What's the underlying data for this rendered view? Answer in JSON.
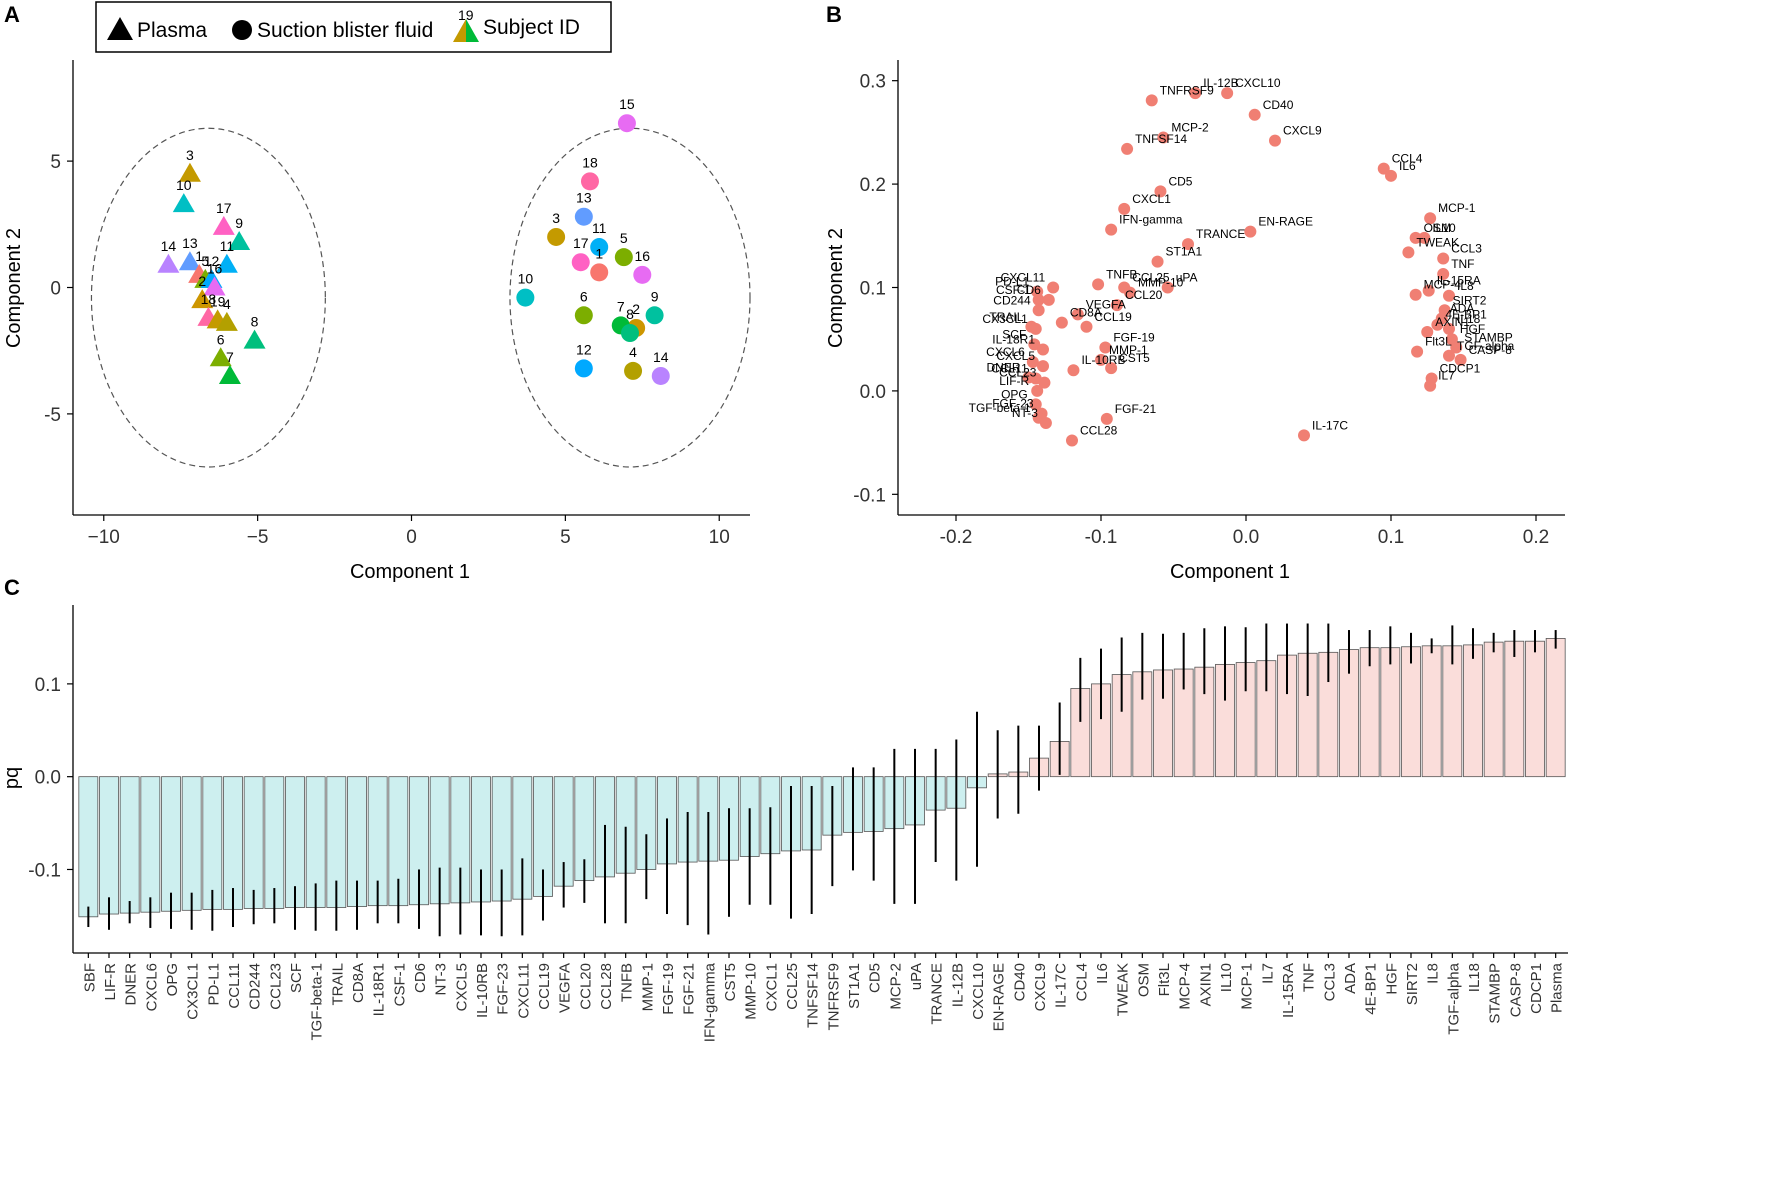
{
  "panels": {
    "A": {
      "letter": "A",
      "xlabel": "Component 1",
      "ylabel": "Component 2"
    },
    "B": {
      "letter": "B",
      "xlabel": "Component 1",
      "ylabel": "Component 2"
    },
    "C": {
      "letter": "C",
      "xlabel": "",
      "ylabel": "pq"
    }
  },
  "legend": {
    "plasma": "Plasma",
    "blister": "Suction blister fluid",
    "subject_id": "Subject ID",
    "subject_example": "19"
  },
  "chart_data": [
    {
      "type": "scatter",
      "panel": "A",
      "xlabel": "Component 1",
      "ylabel": "Component 2",
      "xlim": [
        -11,
        11
      ],
      "ylim": [
        -9,
        9
      ],
      "xticks": [
        -10,
        -5,
        0,
        5,
        10
      ],
      "xtick_labels": [
        "−10",
        "−5",
        "0",
        "5",
        "10"
      ],
      "yticks": [
        -5,
        0,
        5
      ],
      "ytick_labels": [
        "-5",
        "0",
        "5"
      ],
      "subject_colors": {
        "1": "#F8766D",
        "2": "#CD9600",
        "3": "#C49A00",
        "4": "#B3A000",
        "5": "#7CAE00",
        "6": "#7CAE00",
        "7": "#00BA38",
        "8": "#00BF7D",
        "9": "#00C19F",
        "10": "#00BFC4",
        "11": "#00B0F6",
        "12": "#00A9FF",
        "13": "#619CFF",
        "14": "#B983FF",
        "15": "#E76BF3",
        "16": "#E76BF3",
        "17": "#FF61C3",
        "18": "#FF67A4",
        "19": "#C49A00"
      },
      "series": [
        {
          "name": "Plasma",
          "shape": "triangle",
          "points": [
            {
              "id": "3",
              "x": -7.2,
              "y": 4.5
            },
            {
              "id": "10",
              "x": -7.4,
              "y": 3.3
            },
            {
              "id": "17",
              "x": -6.1,
              "y": 2.4
            },
            {
              "id": "9",
              "x": -5.6,
              "y": 1.8
            },
            {
              "id": "11",
              "x": -6.0,
              "y": 0.9
            },
            {
              "id": "14",
              "x": -7.9,
              "y": 0.9
            },
            {
              "id": "13",
              "x": -7.2,
              "y": 1.0
            },
            {
              "id": "1",
              "x": -6.9,
              "y": 0.5
            },
            {
              "id": "5",
              "x": -6.7,
              "y": 0.3
            },
            {
              "id": "12",
              "x": -6.5,
              "y": 0.3
            },
            {
              "id": "16",
              "x": -6.4,
              "y": 0.0
            },
            {
              "id": "2",
              "x": -6.8,
              "y": -0.5
            },
            {
              "id": "18",
              "x": -6.6,
              "y": -1.2
            },
            {
              "id": "19",
              "x": -6.3,
              "y": -1.3
            },
            {
              "id": "4",
              "x": -6.0,
              "y": -1.4
            },
            {
              "id": "8",
              "x": -5.1,
              "y": -2.1
            },
            {
              "id": "6",
              "x": -6.2,
              "y": -2.8
            },
            {
              "id": "7",
              "x": -5.9,
              "y": -3.5
            }
          ]
        },
        {
          "name": "Suction blister fluid",
          "shape": "circle",
          "points": [
            {
              "id": "15",
              "x": 7.0,
              "y": 6.5
            },
            {
              "id": "18",
              "x": 5.8,
              "y": 4.2
            },
            {
              "id": "13",
              "x": 5.6,
              "y": 2.8
            },
            {
              "id": "3",
              "x": 4.7,
              "y": 2.0
            },
            {
              "id": "11",
              "x": 6.1,
              "y": 1.6
            },
            {
              "id": "5",
              "x": 6.9,
              "y": 1.2
            },
            {
              "id": "17",
              "x": 5.5,
              "y": 1.0
            },
            {
              "id": "1",
              "x": 6.1,
              "y": 0.6
            },
            {
              "id": "16",
              "x": 7.5,
              "y": 0.5
            },
            {
              "id": "10",
              "x": 3.7,
              "y": -0.4
            },
            {
              "id": "6",
              "x": 5.6,
              "y": -1.1
            },
            {
              "id": "9",
              "x": 7.9,
              "y": -1.1
            },
            {
              "id": "2",
              "x": 7.3,
              "y": -1.6
            },
            {
              "id": "7",
              "x": 6.8,
              "y": -1.5
            },
            {
              "id": "8",
              "x": 7.1,
              "y": -1.8
            },
            {
              "id": "12",
              "x": 5.6,
              "y": -3.2
            },
            {
              "id": "4",
              "x": 7.2,
              "y": -3.3
            },
            {
              "id": "14",
              "x": 8.1,
              "y": -3.5
            }
          ]
        }
      ],
      "ellipses": [
        {
          "cx": -6.6,
          "cy": -0.4,
          "rx": 3.8,
          "ry": 6.7
        },
        {
          "cx": 7.1,
          "cy": -0.4,
          "rx": 3.9,
          "ry": 6.7
        }
      ]
    },
    {
      "type": "scatter",
      "panel": "B",
      "xlabel": "Component 1",
      "ylabel": "Component 2",
      "xlim": [
        -0.24,
        0.22
      ],
      "ylim": [
        -0.12,
        0.32
      ],
      "xticks": [
        -0.2,
        -0.1,
        0.0,
        0.1,
        0.2
      ],
      "xtick_labels": [
        "-0.2",
        "-0.1",
        "0.0",
        "0.1",
        "0.2"
      ],
      "yticks": [
        -0.1,
        0.0,
        0.1,
        0.2,
        0.3
      ],
      "ytick_labels": [
        "-0.1",
        "0.0",
        "0.1",
        "0.2",
        "0.3"
      ],
      "point_color": "#F07F73",
      "points": [
        {
          "label": "IL-12B",
          "x": -0.035,
          "y": 0.288
        },
        {
          "label": "CXCL10",
          "x": -0.013,
          "y": 0.288
        },
        {
          "label": "TNFRSF9",
          "x": -0.065,
          "y": 0.281
        },
        {
          "label": "CD40",
          "x": 0.006,
          "y": 0.267
        },
        {
          "label": "MCP-2",
          "x": -0.057,
          "y": 0.245
        },
        {
          "label": "CXCL9",
          "x": 0.02,
          "y": 0.242
        },
        {
          "label": "TNFSF14",
          "x": -0.082,
          "y": 0.234
        },
        {
          "label": "CCL4",
          "x": 0.095,
          "y": 0.215
        },
        {
          "label": "IL6",
          "x": 0.1,
          "y": 0.208
        },
        {
          "label": "CD5",
          "x": -0.059,
          "y": 0.193
        },
        {
          "label": "CXCL1",
          "x": -0.084,
          "y": 0.176
        },
        {
          "label": "MCP-1",
          "x": 0.127,
          "y": 0.167
        },
        {
          "label": "EN-RAGE",
          "x": 0.003,
          "y": 0.154
        },
        {
          "label": "IFN-gamma",
          "x": -0.093,
          "y": 0.156
        },
        {
          "label": "OSM",
          "x": 0.117,
          "y": 0.148
        },
        {
          "label": "IL10",
          "x": 0.123,
          "y": 0.148
        },
        {
          "label": "TRANCE",
          "x": -0.04,
          "y": 0.142
        },
        {
          "label": "TWEAK",
          "x": 0.112,
          "y": 0.134
        },
        {
          "label": "CCL3",
          "x": 0.136,
          "y": 0.128
        },
        {
          "label": "ST1A1",
          "x": -0.061,
          "y": 0.125
        },
        {
          "label": "TNF",
          "x": 0.136,
          "y": 0.113
        },
        {
          "label": "PD-L1",
          "x": -0.144,
          "y": 0.096
        },
        {
          "label": "CXCL11",
          "x": -0.133,
          "y": 0.1
        },
        {
          "label": "CCL25",
          "x": -0.084,
          "y": 0.1
        },
        {
          "label": "uPA",
          "x": -0.054,
          "y": 0.1
        },
        {
          "label": "TNFB",
          "x": -0.102,
          "y": 0.103
        },
        {
          "label": "MMP-10",
          "x": -0.08,
          "y": 0.095
        },
        {
          "label": "CSF-1",
          "x": -0.143,
          "y": 0.088
        },
        {
          "label": "CD6",
          "x": -0.136,
          "y": 0.088
        },
        {
          "label": "MCP-4",
          "x": 0.117,
          "y": 0.093
        },
        {
          "label": "IL-15RA",
          "x": 0.126,
          "y": 0.097
        },
        {
          "label": "IL8",
          "x": 0.14,
          "y": 0.092
        },
        {
          "label": "CD244",
          "x": -0.143,
          "y": 0.078
        },
        {
          "label": "VEGFA",
          "x": -0.116,
          "y": 0.074
        },
        {
          "label": "CCL20",
          "x": -0.089,
          "y": 0.083
        },
        {
          "label": "SIRT2",
          "x": 0.137,
          "y": 0.078
        },
        {
          "label": "CD8A",
          "x": -0.127,
          "y": 0.066
        },
        {
          "label": "CCL19",
          "x": -0.11,
          "y": 0.062
        },
        {
          "label": "TRAIL",
          "x": -0.148,
          "y": 0.062
        },
        {
          "label": "CX3CL1",
          "x": -0.145,
          "y": 0.06
        },
        {
          "label": "4E-BP1",
          "x": 0.132,
          "y": 0.064
        },
        {
          "label": "IL18",
          "x": 0.14,
          "y": 0.06
        },
        {
          "label": "ADA",
          "x": 0.135,
          "y": 0.07
        },
        {
          "label": "HGF",
          "x": 0.142,
          "y": 0.05
        },
        {
          "label": "AXIN1",
          "x": 0.125,
          "y": 0.057
        },
        {
          "label": "FGF-19",
          "x": -0.097,
          "y": 0.042
        },
        {
          "label": "SCF",
          "x": -0.146,
          "y": 0.045
        },
        {
          "label": "IL-18R1",
          "x": -0.14,
          "y": 0.04
        },
        {
          "label": "MMP-1",
          "x": -0.1,
          "y": 0.03
        },
        {
          "label": "STAMBP",
          "x": 0.145,
          "y": 0.042
        },
        {
          "label": "Flt3L",
          "x": 0.118,
          "y": 0.038
        },
        {
          "label": "TGF-alpha",
          "x": 0.14,
          "y": 0.034
        },
        {
          "label": "CASP-8",
          "x": 0.148,
          "y": 0.03
        },
        {
          "label": "CXCL6",
          "x": -0.147,
          "y": 0.028
        },
        {
          "label": "CXCL5",
          "x": -0.14,
          "y": 0.024
        },
        {
          "label": "CST5",
          "x": -0.093,
          "y": 0.022
        },
        {
          "label": "DNER",
          "x": -0.15,
          "y": 0.013
        },
        {
          "label": "CCL11",
          "x": -0.145,
          "y": 0.012
        },
        {
          "label": "IL-10RB",
          "x": -0.119,
          "y": 0.02
        },
        {
          "label": "CDCP1",
          "x": 0.128,
          "y": 0.012
        },
        {
          "label": "IL7",
          "x": 0.127,
          "y": 0.005
        },
        {
          "label": "LIF-R",
          "x": -0.144,
          "y": 0.0
        },
        {
          "label": "CCL23",
          "x": -0.139,
          "y": 0.008
        },
        {
          "label": "OPG",
          "x": -0.145,
          "y": -0.013
        },
        {
          "label": "FGF-23",
          "x": -0.141,
          "y": -0.022
        },
        {
          "label": "TGF-beta-1",
          "x": -0.143,
          "y": -0.026
        },
        {
          "label": "NT-3",
          "x": -0.138,
          "y": -0.031
        },
        {
          "label": "FGF-21",
          "x": -0.096,
          "y": -0.027
        },
        {
          "label": "CCL28",
          "x": -0.12,
          "y": -0.048
        },
        {
          "label": "IL-17C",
          "x": 0.04,
          "y": -0.043
        }
      ]
    },
    {
      "type": "bar",
      "panel": "C",
      "ylabel": "pq",
      "ylim": [
        -0.19,
        0.185
      ],
      "yticks": [
        -0.1,
        0.0,
        0.1
      ],
      "ytick_labels": [
        "-0.1",
        "0.0",
        "0.1"
      ],
      "negative_color": "#CDEFEF",
      "positive_color": "#FADDDA",
      "categories": [
        "SBF",
        "LIF-R",
        "DNER",
        "CXCL6",
        "OPG",
        "CX3CL1",
        "PD-L1",
        "CCL11",
        "CD244",
        "CCL23",
        "SCF",
        "TGF-beta-1",
        "TRAIL",
        "CD8A",
        "IL-18R1",
        "CSF-1",
        "CD6",
        "NT-3",
        "CXCL5",
        "IL-10RB",
        "FGF-23",
        "CXCL11",
        "CCL19",
        "VEGFA",
        "CCL20",
        "CCL28",
        "TNFB",
        "MMP-1",
        "FGF-19",
        "FGF-21",
        "IFN-gamma",
        "CST5",
        "MMP-10",
        "CXCL1",
        "CCL25",
        "TNFSF14",
        "TNFRSF9",
        "ST1A1",
        "CD5",
        "MCP-2",
        "uPA",
        "TRANCE",
        "IL-12B",
        "CXCL10",
        "EN-RAGE",
        "CD40",
        "CXCL9",
        "IL-17C",
        "CCL4",
        "IL6",
        "TWEAK",
        "OSM",
        "Flt3L",
        "MCP-4",
        "AXIN1",
        "IL10",
        "MCP-1",
        "IL7",
        "IL-15RA",
        "TNF",
        "CCL3",
        "ADA",
        "4E-BP1",
        "HGF",
        "SIRT2",
        "IL8",
        "TGF-alpha",
        "IL18",
        "STAMBP",
        "CASP-8",
        "CDCP1",
        "Plasma"
      ],
      "values": [
        -0.151,
        -0.148,
        -0.147,
        -0.146,
        -0.145,
        -0.144,
        -0.143,
        -0.143,
        -0.142,
        -0.142,
        -0.141,
        -0.141,
        -0.141,
        -0.14,
        -0.139,
        -0.139,
        -0.138,
        -0.137,
        -0.136,
        -0.135,
        -0.134,
        -0.132,
        -0.129,
        -0.118,
        -0.112,
        -0.108,
        -0.104,
        -0.1,
        -0.094,
        -0.092,
        -0.091,
        -0.09,
        -0.086,
        -0.083,
        -0.08,
        -0.079,
        -0.063,
        -0.06,
        -0.059,
        -0.056,
        -0.052,
        -0.036,
        -0.034,
        -0.012,
        0.003,
        0.005,
        0.02,
        0.038,
        0.095,
        0.1,
        0.11,
        0.113,
        0.115,
        0.116,
        0.118,
        0.121,
        0.123,
        0.125,
        0.131,
        0.133,
        0.134,
        0.137,
        0.139,
        0.139,
        0.14,
        0.141,
        0.141,
        0.142,
        0.145,
        0.146,
        0.146,
        0.149
      ],
      "error_low": [
        -0.162,
        -0.165,
        -0.158,
        -0.163,
        -0.164,
        -0.165,
        -0.166,
        -0.162,
        -0.159,
        -0.158,
        -0.165,
        -0.166,
        -0.166,
        -0.165,
        -0.158,
        -0.158,
        -0.164,
        -0.172,
        -0.17,
        -0.171,
        -0.172,
        -0.171,
        -0.155,
        -0.141,
        -0.136,
        -0.158,
        -0.158,
        -0.132,
        -0.148,
        -0.16,
        -0.17,
        -0.151,
        -0.138,
        -0.138,
        -0.153,
        -0.148,
        -0.118,
        -0.101,
        -0.112,
        -0.137,
        -0.137,
        -0.092,
        -0.112,
        -0.097,
        -0.045,
        -0.04,
        -0.015,
        0.002,
        0.059,
        0.062,
        0.07,
        0.083,
        0.084,
        0.094,
        0.089,
        0.082,
        0.092,
        0.092,
        0.089,
        0.087,
        0.102,
        0.111,
        0.119,
        0.121,
        0.122,
        0.133,
        0.121,
        0.127,
        0.134,
        0.129,
        0.134,
        0.138
      ],
      "error_high": [
        -0.14,
        -0.13,
        -0.134,
        -0.13,
        -0.125,
        -0.125,
        -0.122,
        -0.12,
        -0.122,
        -0.12,
        -0.118,
        -0.115,
        -0.112,
        -0.112,
        -0.112,
        -0.11,
        -0.1,
        -0.098,
        -0.098,
        -0.1,
        -0.1,
        -0.088,
        -0.1,
        -0.092,
        -0.089,
        -0.052,
        -0.054,
        -0.062,
        -0.045,
        -0.038,
        -0.038,
        -0.034,
        -0.034,
        -0.033,
        -0.01,
        -0.01,
        -0.01,
        0.01,
        0.01,
        0.03,
        0.03,
        0.03,
        0.04,
        0.07,
        0.05,
        0.055,
        0.055,
        0.08,
        0.128,
        0.138,
        0.15,
        0.155,
        0.154,
        0.155,
        0.16,
        0.162,
        0.161,
        0.165,
        0.165,
        0.165,
        0.165,
        0.158,
        0.158,
        0.162,
        0.155,
        0.149,
        0.163,
        0.16,
        0.155,
        0.158,
        0.158,
        0.158
      ]
    }
  ]
}
